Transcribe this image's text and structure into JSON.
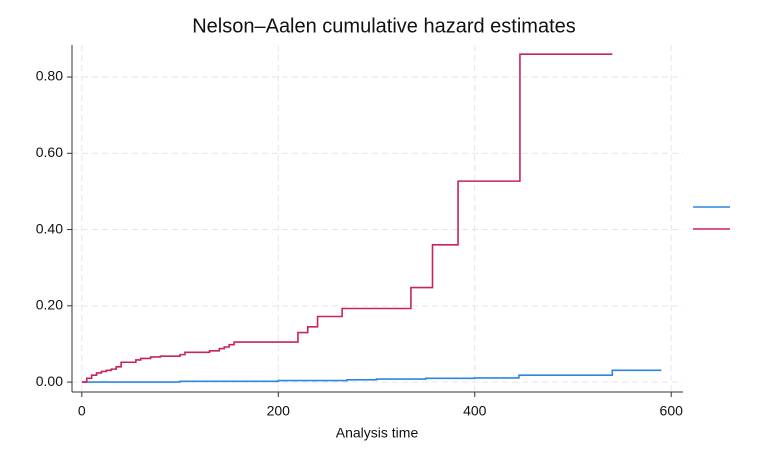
{
  "chart_data": {
    "type": "step",
    "title": "Nelson–Aalen cumulative hazard estimates",
    "x_label": "Analysis time",
    "xlim": [
      -10,
      612
    ],
    "xticks": [
      0,
      200,
      400,
      600
    ],
    "ylim": [
      -0.026,
      0.884
    ],
    "yticks": [
      {
        "value": 0,
        "label": "0.00"
      },
      {
        "value": 0.2,
        "label": "0.20"
      },
      {
        "value": 0.4,
        "label": "0.40"
      },
      {
        "value": 0.6,
        "label": "0.60"
      },
      {
        "value": 0.8,
        "label": "0.80"
      }
    ],
    "grid": true,
    "legend": "right",
    "series": [
      {
        "color": "#2e86de",
        "x": [
          0,
          100,
          200,
          270,
          300,
          350,
          400,
          445,
          540,
          590
        ],
        "values": [
          0,
          0.002,
          0.004,
          0.006,
          0.008,
          0.01,
          0.011,
          0.018,
          0.031,
          0.031
        ]
      },
      {
        "color": "#c8245c",
        "x": [
          0,
          5,
          10,
          15,
          20,
          25,
          30,
          35,
          40,
          55,
          60,
          70,
          80,
          100,
          105,
          130,
          140,
          145,
          150,
          155,
          220,
          230,
          240,
          265,
          335,
          357,
          383,
          446,
          540
        ],
        "values": [
          0,
          0.01,
          0.018,
          0.024,
          0.028,
          0.031,
          0.034,
          0.04,
          0.052,
          0.058,
          0.062,
          0.066,
          0.068,
          0.072,
          0.078,
          0.082,
          0.088,
          0.092,
          0.098,
          0.105,
          0.13,
          0.145,
          0.172,
          0.193,
          0.248,
          0.36,
          0.527,
          0.86,
          0.86
        ]
      }
    ]
  }
}
